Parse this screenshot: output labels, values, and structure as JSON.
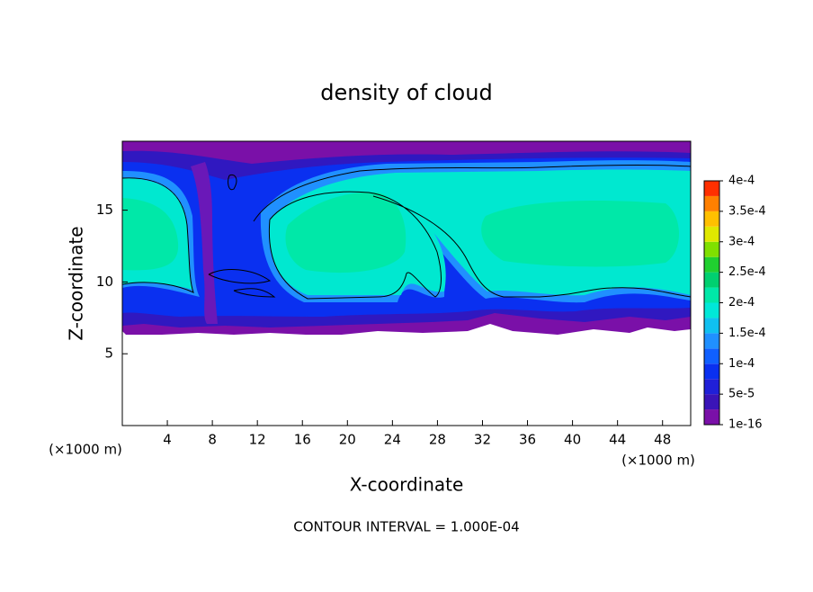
{
  "chart_data": {
    "type": "contour",
    "title": "density of cloud",
    "x_label": "X-coordinate",
    "y_label": "Z-coordinate",
    "x_unit_left": "(×1000 m)",
    "x_unit_right": "(×1000 m)",
    "footnote": "CONTOUR INTERVAL = 1.000E-04",
    "xlim": [
      0,
      50.5
    ],
    "xticks": [
      4,
      8,
      12,
      16,
      20,
      24,
      28,
      32,
      36,
      40,
      44,
      48
    ],
    "ylim": [
      0,
      19.8
    ],
    "yticks": [
      5,
      10,
      15
    ],
    "clim": [
      1e-16,
      0.0004
    ],
    "cticks": [
      {
        "value": 1e-16,
        "label": "1e-16"
      },
      {
        "value": 5e-05,
        "label": "5e-5"
      },
      {
        "value": 0.0001,
        "label": "1e-4"
      },
      {
        "value": 0.00015,
        "label": "1.5e-4"
      },
      {
        "value": 0.0002,
        "label": "2e-4"
      },
      {
        "value": 0.00025,
        "label": "2.5e-4"
      },
      {
        "value": 0.0003,
        "label": "3e-4"
      },
      {
        "value": 0.00035,
        "label": "3.5e-4"
      },
      {
        "value": 0.0004,
        "label": "4e-4"
      }
    ],
    "colors": [
      "#7a10a8",
      "#3a14b8",
      "#2020d8",
      "#0a30f0",
      "#1060ff",
      "#2090ff",
      "#10c0f0",
      "#00e8d8",
      "#00e8a8",
      "#00d070",
      "#20d030",
      "#80e000",
      "#e0e800",
      "#ffc000",
      "#ff8000",
      "#ff3000"
    ]
  }
}
